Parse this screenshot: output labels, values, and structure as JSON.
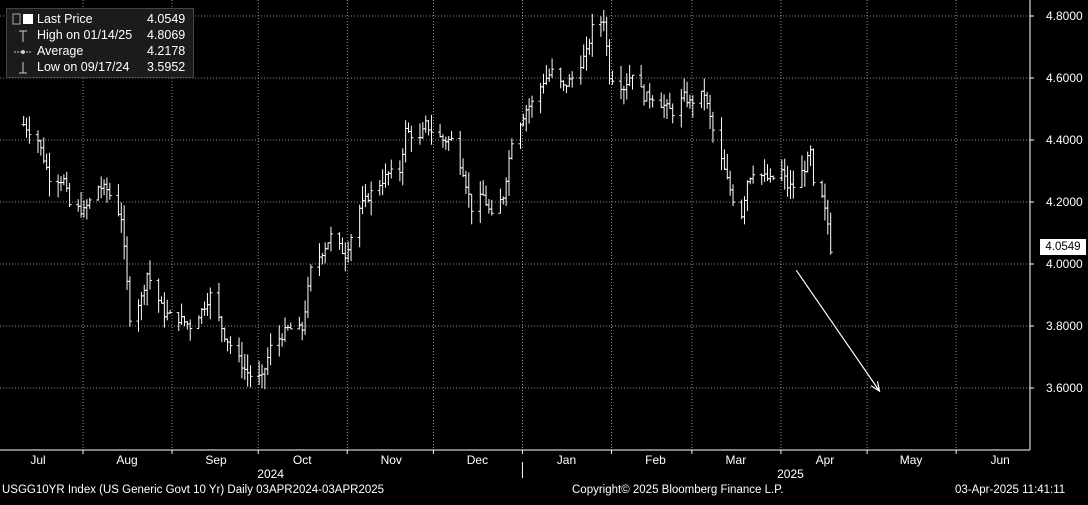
{
  "legend": {
    "last_price_label": "Last Price",
    "last_price_value": "4.0549",
    "high_label": "High on 01/14/25",
    "high_value": "4.8069",
    "average_label": "Average",
    "average_value": "4.2178",
    "low_label": "Low on 09/17/24",
    "low_value": "3.5952"
  },
  "footer": {
    "ticker": "USGG10YR Index (US Generic Govt 10 Yr)  Daily 03APR2024-03APR2025",
    "copyright": "Copyright© 2025 Bloomberg Finance L.P.",
    "timestamp": "03-Apr-2025 11:41:11"
  },
  "last_value_badge": "4.0549",
  "colors": {
    "background": "#000000",
    "bars": "#ffffff",
    "grid": "#ffffff",
    "arrow": "#ffffff"
  },
  "chart_data": {
    "type": "ohlc",
    "ylim": [
      3.4,
      4.85
    ],
    "y_ticks": [
      "4.8000",
      "4.6000",
      "4.4000",
      "4.2000",
      "4.0000",
      "3.8000",
      "3.6000"
    ],
    "grid": "dotted",
    "month_labels": [
      "Jul",
      "Aug",
      "Sep",
      "Oct",
      "Nov",
      "Dec",
      "Jan",
      "Feb",
      "Mar",
      "Apr",
      "May",
      "Jun"
    ],
    "year_labels": [
      "2024",
      "2025"
    ],
    "annotation": {
      "type": "arrow",
      "from": [
        "2025-03-22",
        3.98
      ],
      "to": [
        "2025-04-20",
        3.59
      ]
    },
    "anchor_points": [
      [
        "2024-06-26",
        4.45
      ],
      [
        "2024-07-01",
        4.4
      ],
      [
        "2024-07-05",
        4.28
      ],
      [
        "2024-07-10",
        4.27
      ],
      [
        "2024-07-12",
        4.19
      ],
      [
        "2024-07-17",
        4.17
      ],
      [
        "2024-07-22",
        4.25
      ],
      [
        "2024-07-25",
        4.24
      ],
      [
        "2024-07-30",
        4.15
      ],
      [
        "2024-08-02",
        3.83
      ],
      [
        "2024-08-06",
        3.89
      ],
      [
        "2024-08-08",
        3.97
      ],
      [
        "2024-08-14",
        3.84
      ],
      [
        "2024-08-20",
        3.82
      ],
      [
        "2024-08-23",
        3.8
      ],
      [
        "2024-08-27",
        3.85
      ],
      [
        "2024-08-30",
        3.9
      ],
      [
        "2024-09-04",
        3.77
      ],
      [
        "2024-09-11",
        3.66
      ],
      [
        "2024-09-13",
        3.64
      ],
      [
        "2024-09-17",
        3.63
      ],
      [
        "2024-09-20",
        3.73
      ],
      [
        "2024-09-26",
        3.79
      ],
      [
        "2024-10-01",
        3.79
      ],
      [
        "2024-10-04",
        3.98
      ],
      [
        "2024-10-08",
        4.04
      ],
      [
        "2024-10-11",
        4.09
      ],
      [
        "2024-10-16",
        4.03
      ],
      [
        "2024-10-21",
        4.18
      ],
      [
        "2024-10-25",
        4.23
      ],
      [
        "2024-10-31",
        4.29
      ],
      [
        "2024-11-04",
        4.3
      ],
      [
        "2024-11-06",
        4.43
      ],
      [
        "2024-11-11",
        4.4
      ],
      [
        "2024-11-13",
        4.45
      ],
      [
        "2024-11-15",
        4.43
      ],
      [
        "2024-11-19",
        4.4
      ],
      [
        "2024-11-22",
        4.4
      ],
      [
        "2024-11-26",
        4.3
      ],
      [
        "2024-11-29",
        4.18
      ],
      [
        "2024-12-03",
        4.22
      ],
      [
        "2024-12-06",
        4.15
      ],
      [
        "2024-12-10",
        4.22
      ],
      [
        "2024-12-13",
        4.4
      ],
      [
        "2024-12-18",
        4.5
      ],
      [
        "2024-12-20",
        4.52
      ],
      [
        "2024-12-24",
        4.59
      ],
      [
        "2024-12-27",
        4.62
      ],
      [
        "2024-12-31",
        4.57
      ],
      [
        "2025-01-03",
        4.6
      ],
      [
        "2025-01-08",
        4.68
      ],
      [
        "2025-01-10",
        4.76
      ],
      [
        "2025-01-14",
        4.79
      ],
      [
        "2025-01-16",
        4.61
      ],
      [
        "2025-01-21",
        4.57
      ],
      [
        "2025-01-24",
        4.62
      ],
      [
        "2025-01-28",
        4.54
      ],
      [
        "2025-01-31",
        4.54
      ],
      [
        "2025-02-04",
        4.51
      ],
      [
        "2025-02-07",
        4.49
      ],
      [
        "2025-02-11",
        4.54
      ],
      [
        "2025-02-13",
        4.52
      ],
      [
        "2025-02-18",
        4.55
      ],
      [
        "2025-02-21",
        4.43
      ],
      [
        "2025-02-25",
        4.3
      ],
      [
        "2025-02-28",
        4.21
      ],
      [
        "2025-03-03",
        4.16
      ],
      [
        "2025-03-05",
        4.27
      ],
      [
        "2025-03-07",
        4.3
      ],
      [
        "2025-03-11",
        4.28
      ],
      [
        "2025-03-13",
        4.27
      ],
      [
        "2025-03-17",
        4.3
      ],
      [
        "2025-03-19",
        4.25
      ],
      [
        "2025-03-21",
        4.25
      ],
      [
        "2025-03-25",
        4.31
      ],
      [
        "2025-03-27",
        4.36
      ],
      [
        "2025-03-28",
        4.25
      ],
      [
        "2025-03-31",
        4.21
      ],
      [
        "2025-04-01",
        4.17
      ],
      [
        "2025-04-02",
        4.13
      ],
      [
        "2025-04-03",
        4.05
      ]
    ]
  }
}
